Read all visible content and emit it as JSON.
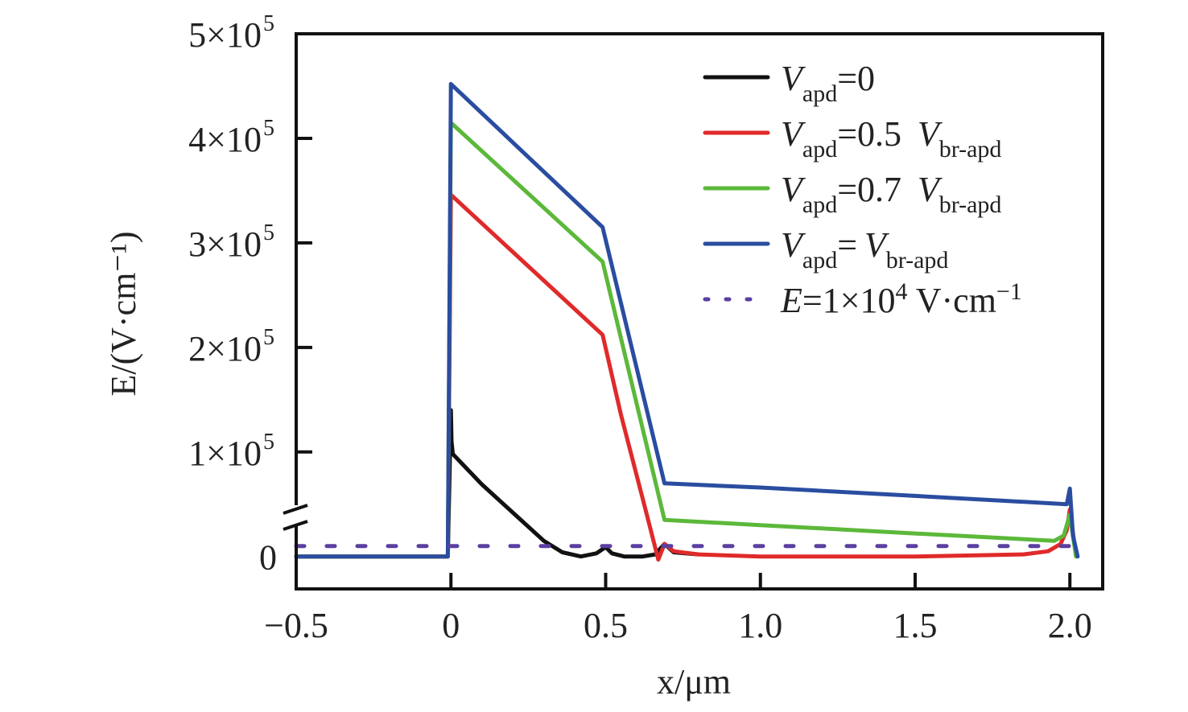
{
  "chart_data": {
    "type": "line",
    "title": "",
    "xlabel": "x/μm",
    "ylabel": "E/(V·cm⁻¹)",
    "xlim": [
      -0.5,
      2.106
    ],
    "ylim": [
      -0.31,
      5
    ],
    "y_unit_multiplier": 100000,
    "x_ticks": [
      -0.5,
      0,
      0.5,
      1.0,
      1.5,
      2.0
    ],
    "x_tick_labels": [
      "−0.5",
      "0",
      "0.5",
      "1.0",
      "1.5",
      "2.0"
    ],
    "y_ticks": [
      0,
      1,
      2,
      3,
      4,
      5
    ],
    "y_tick_labels": [
      "0",
      "1×10",
      "2×10",
      "3×10",
      "4×10",
      "5×10"
    ],
    "y_tick_exponent": "5",
    "axis_break": "y-axis between 0 and 1×10⁵",
    "grid": false,
    "legend_position": "top-right",
    "series": [
      {
        "name": "Vapd=0",
        "legend": {
          "v": "V",
          "sub": "apd",
          "rest": "=0",
          "v2": "",
          "sub2": ""
        },
        "color": "#111111",
        "style": "solid",
        "x": [
          -0.5,
          -0.01,
          0,
          0.002,
          0.006,
          0.1,
          0.2,
          0.3,
          0.36,
          0.42,
          0.47,
          0.5,
          0.52,
          0.56,
          0.62,
          0.66,
          0.69,
          0.72,
          0.8
        ],
        "y": [
          0,
          0,
          1.4,
          1.1,
          0.98,
          0.69,
          0.42,
          0.15,
          0.04,
          0.0,
          0.03,
          0.09,
          0.03,
          0.0,
          0.0,
          0.02,
          0.12,
          0.04,
          0.02
        ]
      },
      {
        "name": "Vapd=0.5 Vbr-apd",
        "legend": {
          "v": "V",
          "sub": "apd",
          "rest": "=0.5 ",
          "v2": "V",
          "sub2": "br-apd"
        },
        "color": "#e02a2a",
        "style": "solid",
        "x": [
          -0.5,
          -0.01,
          0,
          0.49,
          0.55,
          0.62,
          0.67,
          0.69,
          0.72,
          0.8,
          1.0,
          1.5,
          1.85,
          1.93,
          1.97,
          1.99,
          2.0,
          2.02
        ],
        "y": [
          0,
          0,
          3.46,
          2.12,
          1.35,
          0.55,
          -0.03,
          0.12,
          0.05,
          0.02,
          0.0,
          0.0,
          0.02,
          0.05,
          0.12,
          0.25,
          0.45,
          0
        ]
      },
      {
        "name": "Vapd=0.7 Vbr-apd",
        "legend": {
          "v": "V",
          "sub": "apd",
          "rest": "=0.7 ",
          "v2": "V",
          "sub2": "br-apd"
        },
        "color": "#5cb83a",
        "style": "solid",
        "x": [
          -0.5,
          -0.01,
          0,
          0.49,
          0.69,
          1.0,
          1.5,
          1.95,
          1.98,
          1.995,
          2.0,
          2.02
        ],
        "y": [
          0,
          0,
          4.15,
          2.82,
          0.35,
          0.3,
          0.22,
          0.15,
          0.2,
          0.35,
          0.4,
          0
        ]
      },
      {
        "name": "Vapd=Vbr-apd",
        "legend": {
          "v": "V",
          "sub": "apd",
          "rest": "=",
          "v2": "V",
          "sub2": "br-apd"
        },
        "color": "#2a4da0",
        "style": "solid",
        "x": [
          -0.5,
          -0.01,
          0,
          0.49,
          0.69,
          1.0,
          1.5,
          1.99,
          2.0,
          2.01,
          2.025
        ],
        "y": [
          0,
          0,
          4.52,
          3.15,
          0.7,
          0.66,
          0.58,
          0.5,
          0.65,
          0.2,
          0
        ]
      },
      {
        "name": "E=1×10⁴ V·cm⁻¹",
        "legend": {
          "v": "E",
          "sub": "",
          "rest": "=1×10",
          "sup": "4",
          "tail": " V·cm",
          "sup2": "−1"
        },
        "color": "#5a3fa0",
        "style": "dotted",
        "x": [
          -0.5,
          2.05
        ],
        "y": [
          0.1,
          0.1
        ]
      }
    ]
  }
}
